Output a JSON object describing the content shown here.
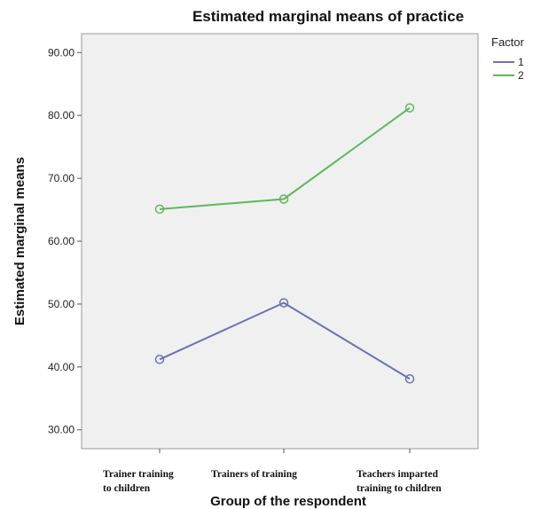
{
  "chart_data": {
    "type": "line",
    "title": "Estimated marginal means of practice",
    "xlabel": "Group of the respondent",
    "ylabel": "Estimated marginal means",
    "categories": [
      [
        "Trainer training",
        "to children"
      ],
      [
        "Trainers of training"
      ],
      [
        "Teachers imparted",
        "training to children"
      ]
    ],
    "ylim": [
      27,
      93
    ],
    "yticks": [
      "30.00",
      "40.00",
      "50.00",
      "60.00",
      "70.00",
      "80.00",
      "90.00"
    ],
    "ytick_values": [
      30,
      40,
      50,
      60,
      70,
      80,
      90
    ],
    "legend": {
      "title": "Factor",
      "placement": "right"
    },
    "series": [
      {
        "name": "1",
        "color": "#6a72b4",
        "values": [
          41.2,
          50.2,
          38.1
        ]
      },
      {
        "name": "2",
        "color": "#5cb85c",
        "values": [
          65.1,
          66.7,
          81.2
        ]
      }
    ],
    "grid": false,
    "background": "#f0f0f0"
  }
}
